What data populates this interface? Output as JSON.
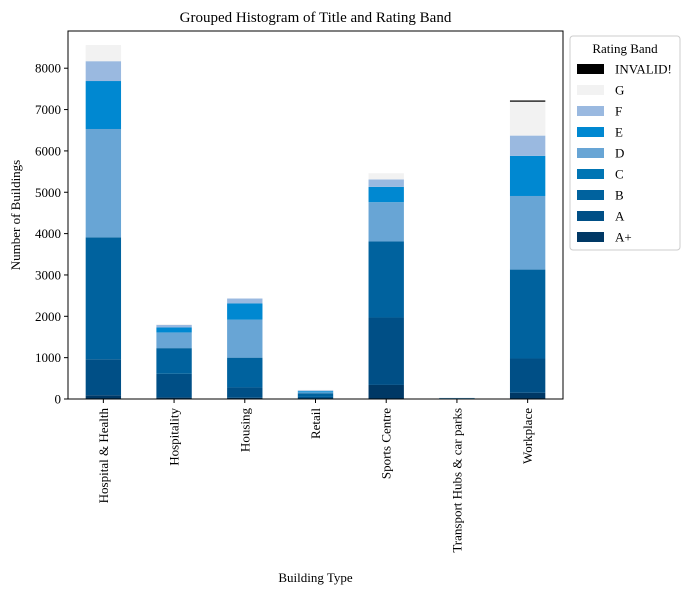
{
  "chart_data": {
    "type": "bar",
    "stacked": true,
    "title": "Grouped Histogram of Title and Rating Band",
    "xlabel": "Building Type",
    "ylabel": "Number of Buildings",
    "ylim": [
      0,
      8900
    ],
    "yticks": [
      0,
      1000,
      2000,
      3000,
      4000,
      5000,
      6000,
      7000,
      8000
    ],
    "grid": false,
    "legend_title": "Rating Band",
    "legend_position": "outside-right-top",
    "categories": [
      "Hospital & Health",
      "Hospitality",
      "Housing",
      "Retail",
      "Sports Centre",
      "Transport Hubs & car parks",
      "Workplace"
    ],
    "series": [
      {
        "name": "A+",
        "color": "#003865",
        "values": [
          90,
          40,
          30,
          10,
          340,
          5,
          150
        ]
      },
      {
        "name": "A",
        "color": "#004f86",
        "values": [
          870,
          570,
          250,
          40,
          1630,
          5,
          830
        ]
      },
      {
        "name": "B",
        "color": "#00629e",
        "values": [
          2950,
          620,
          720,
          90,
          1840,
          10,
          2150
        ]
      },
      {
        "name": "C",
        "color": "#0075b4",
        "values": [
          0,
          0,
          0,
          0,
          0,
          0,
          0
        ]
      },
      {
        "name": "D",
        "color": "#68a5d5",
        "values": [
          2620,
          380,
          920,
          20,
          950,
          3,
          1780
        ]
      },
      {
        "name": "E",
        "color": "#0088d1",
        "values": [
          1160,
          120,
          390,
          30,
          370,
          2,
          970
        ]
      },
      {
        "name": "F",
        "color": "#9ab9e0",
        "values": [
          480,
          60,
          120,
          20,
          180,
          1,
          490
        ]
      },
      {
        "name": "G",
        "color": "#f2f2f2",
        "values": [
          390,
          20,
          0,
          10,
          150,
          0,
          820
        ]
      },
      {
        "name": "INVALID!",
        "color": "#000000",
        "values": [
          0,
          0,
          0,
          0,
          0,
          0,
          30
        ]
      }
    ]
  }
}
